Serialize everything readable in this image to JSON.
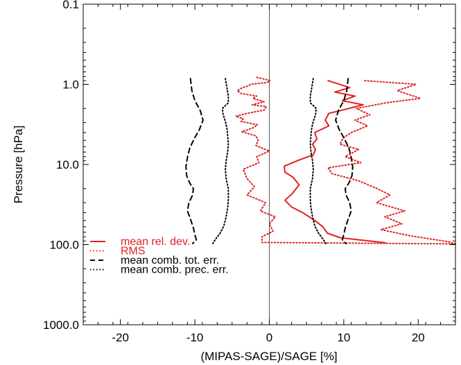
{
  "chart_data": {
    "type": "line",
    "title": "",
    "xlabel": "(MIPAS-SAGE)/SAGE [%]",
    "ylabel": "Pressure [hPa]",
    "xlim": [
      -25,
      25
    ],
    "ylim": [
      0.1,
      1000
    ],
    "y_scale": "log",
    "y_reversed": true,
    "x_ticks": [
      -20,
      -10,
      0,
      10,
      20
    ],
    "x_tick_labels": [
      "-20",
      "-10",
      "0",
      "10",
      "20"
    ],
    "y_ticks": [
      0.1,
      1,
      10,
      100,
      1000
    ],
    "y_tick_labels": [
      "0.1",
      "1.0",
      "10.0",
      "100.0",
      "1000.0"
    ],
    "zero_line": true,
    "grid": false,
    "legend_position": "bottom-left",
    "colors": {
      "red": "#e02020",
      "black": "#000000"
    },
    "series": [
      {
        "name": "mean rel. dev.",
        "color": "#e02020",
        "style": "solid",
        "x": [
          7.9,
          10.8,
          8.8,
          11.5,
          9.8,
          12.6,
          9.8,
          8.0,
          7.5,
          8.0,
          6.1,
          6.4,
          5.8,
          6.2,
          5.9,
          4.0,
          2.0,
          2.1,
          3.2,
          4.0,
          3.1,
          2.1,
          3.0,
          4.5,
          6.1,
          7.2,
          7.8,
          9.5,
          15.6
        ],
        "y": [
          0.9,
          1.1,
          1.25,
          1.4,
          1.6,
          1.8,
          2.1,
          2.3,
          2.8,
          3.3,
          4.0,
          4.8,
          5.6,
          6.5,
          7.6,
          8.8,
          10.5,
          12.5,
          14.5,
          18.0,
          23.0,
          28.0,
          34.0,
          40.0,
          50.0,
          60.0,
          72.0,
          82.0,
          95.0
        ]
      },
      {
        "name": "RMS",
        "color": "#e02020",
        "style": "dotted",
        "x": [
          12.8,
          19.7,
          17.2,
          20.3,
          15.7,
          11.7,
          13.5,
          11.5,
          13.2,
          11.0,
          9.9,
          9.5,
          12.0,
          10.2,
          12.3,
          7.9,
          8.4,
          12.0,
          14.5,
          16.2,
          14.4,
          18.2,
          15.5,
          17.8,
          15.0,
          19.0,
          24.0,
          25.0,
          -1.0,
          -1.0,
          0.5,
          0.0,
          0.8,
          -1.2,
          -0.5,
          -3.0,
          -2.0,
          -3.0,
          -3.5,
          -1.4,
          -1.7,
          0.0,
          -1.8,
          -1.5,
          -1.8,
          -3.7,
          -2.2,
          -1.6,
          -3.8,
          -3.5,
          -4.5,
          -3.0,
          -0.7,
          -0.4,
          -2.3,
          -0.7,
          -2.2,
          -1.7,
          -3.8,
          -4.3,
          -3.6,
          -2.8,
          -2.5,
          -0.3,
          0.1,
          -0.9,
          -1.7
        ],
        "y": [
          0.9,
          1.0,
          1.2,
          1.5,
          1.7,
          2.0,
          2.4,
          2.8,
          3.3,
          4.0,
          4.7,
          5.6,
          6.5,
          8.0,
          9.5,
          11.0,
          13.0,
          16.0,
          20.0,
          24.0,
          30.0,
          38.0,
          45.0,
          55.0,
          65.0,
          78.0,
          92.0,
          98.0,
          94.0,
          80.0,
          68.0,
          55.0,
          45.0,
          38.0,
          30.0,
          24.0,
          19.0,
          15.0,
          11.5,
          9.5,
          8.0,
          6.8,
          5.8,
          5.0,
          4.4,
          3.9,
          3.5,
          3.2,
          2.9,
          2.7,
          2.5,
          2.3,
          2.1,
          1.9,
          1.8,
          1.65,
          1.5,
          1.4,
          1.3,
          1.2,
          1.1,
          1.05,
          1.0,
          0.95,
          0.9,
          0.85,
          0.82
        ]
      },
      {
        "name": "mean comb. tot. err.",
        "color": "#000000",
        "style": "dashed",
        "x": [
          -10.6,
          -10.4,
          -10.0,
          -9.3,
          -8.9,
          -9.4,
          -10.1,
          -10.7,
          -11.0,
          -11.2,
          -11.1,
          -10.7,
          -10.2,
          -10.3,
          -10.8,
          -11.0,
          -10.6,
          -10.2,
          -10.0,
          -9.8,
          -10.3
        ],
        "y": [
          0.85,
          1.2,
          1.6,
          2.1,
          2.8,
          3.7,
          4.8,
          6.3,
          8.2,
          10.7,
          13.8,
          17.0,
          20.0,
          24.0,
          30.0,
          38.0,
          48.0,
          62.0,
          75.0,
          87.0,
          97.0
        ],
        "mirror": {
          "x": [
            10.6,
            10.4,
            10.0,
            9.3,
            8.9,
            9.4,
            10.1,
            10.7,
            11.0,
            11.2,
            11.1,
            10.7,
            10.2,
            10.3,
            10.8,
            11.0,
            10.6,
            10.2,
            10.0,
            9.8,
            10.3
          ],
          "y": [
            0.85,
            1.2,
            1.6,
            2.1,
            2.8,
            3.7,
            4.8,
            6.3,
            8.2,
            10.7,
            13.8,
            17.0,
            20.0,
            24.0,
            30.0,
            38.0,
            48.0,
            62.0,
            75.0,
            87.0,
            97.0
          ]
        }
      },
      {
        "name": "mean comb. prec. err.",
        "color": "#000000",
        "style": "dotted",
        "x": [
          -5.9,
          -5.7,
          -5.5,
          -5.5,
          -6.3,
          -6.2,
          -5.9,
          -5.7,
          -5.6,
          -5.5,
          -5.6,
          -5.8,
          -5.9,
          -5.8,
          -5.5,
          -5.5,
          -5.6,
          -5.8,
          -6.1,
          -6.6,
          -7.2,
          -7.6
        ],
        "y": [
          0.85,
          1.1,
          1.4,
          1.7,
          2.0,
          2.4,
          2.9,
          3.5,
          4.3,
          5.5,
          7.0,
          9.0,
          11.5,
          15.0,
          20.0,
          27.0,
          35.0,
          45.0,
          58.0,
          72.0,
          85.0,
          97.0
        ],
        "mirror": {
          "x": [
            5.9,
            5.7,
            5.5,
            5.5,
            6.3,
            6.2,
            5.9,
            5.7,
            5.6,
            5.5,
            5.6,
            5.8,
            5.9,
            5.8,
            5.5,
            5.5,
            5.6,
            5.8,
            6.1,
            6.6,
            7.2,
            7.6
          ],
          "y": [
            0.85,
            1.1,
            1.4,
            1.7,
            2.0,
            2.4,
            2.9,
            3.5,
            4.3,
            5.5,
            7.0,
            9.0,
            11.5,
            15.0,
            20.0,
            27.0,
            35.0,
            45.0,
            58.0,
            72.0,
            85.0,
            97.0
          ]
        }
      }
    ]
  }
}
